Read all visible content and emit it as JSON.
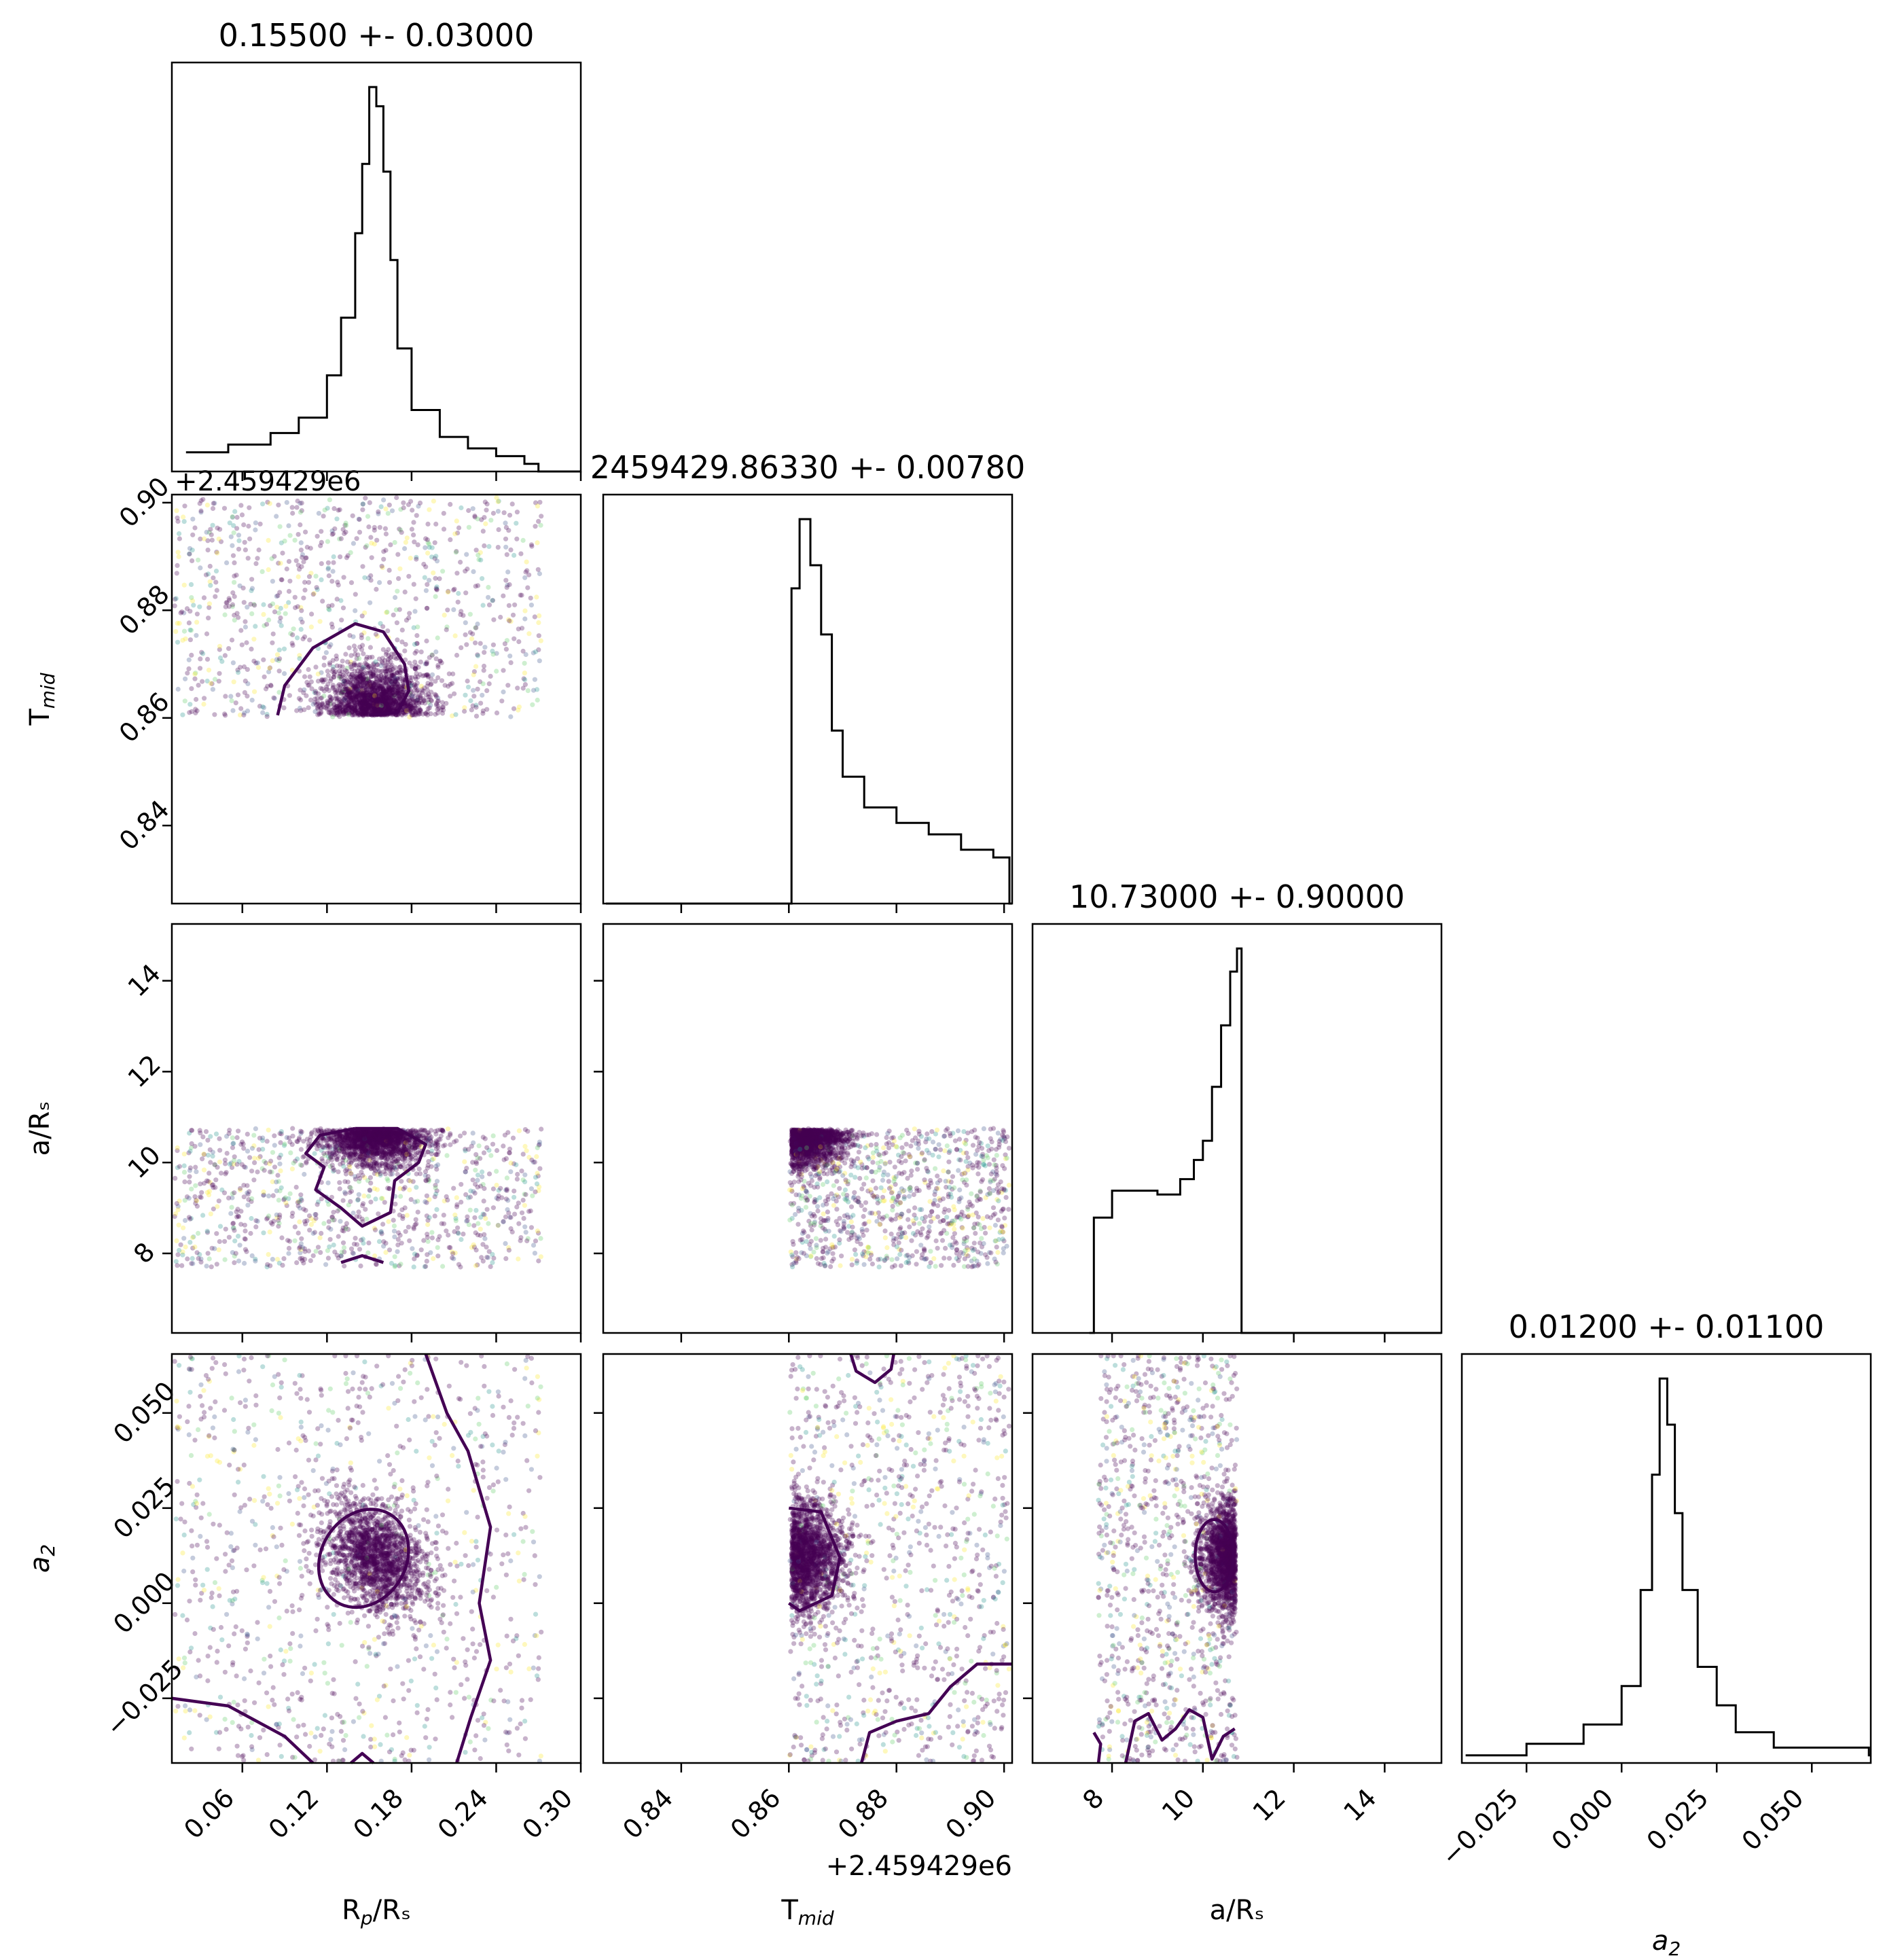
{
  "chart_data": {
    "type": "scatter",
    "kind": "corner-plot",
    "parameters": [
      {
        "key": "rp",
        "label": "R_p/R_s",
        "title": "0.15500 +- 0.03000",
        "range": [
          0.01,
          0.3
        ],
        "ticks": [
          0.06,
          0.12,
          0.18,
          0.24,
          0.3
        ],
        "tick_labels": [
          "0.06",
          "0.12",
          "0.18",
          "0.24",
          "0.30"
        ],
        "center": 0.155,
        "sigma": 0.03
      },
      {
        "key": "tmid",
        "label": "T_mid",
        "title": "2459429.86330 +- 0.00780",
        "offset_label": "+2.459429e6",
        "range": [
          0.8255,
          0.9015
        ],
        "ticks": [
          0.84,
          0.86,
          0.88,
          0.9
        ],
        "tick_labels": [
          "0.84",
          "0.86",
          "0.88",
          "0.90"
        ],
        "center": 0.8633,
        "sigma": 0.0078
      },
      {
        "key": "ars",
        "label": "a/R_s",
        "title": "10.73000 +- 0.90000",
        "range": [
          6.25,
          15.25
        ],
        "ticks": [
          8,
          10,
          12,
          14
        ],
        "tick_labels": [
          "8",
          "10",
          "12",
          "14"
        ],
        "center": 10.73,
        "sigma": 0.9
      },
      {
        "key": "a2",
        "label": "a_2",
        "title": "0.01200 +- 0.01100",
        "range": [
          -0.042,
          0.0655
        ],
        "ticks": [
          -0.025,
          0.0,
          0.025,
          0.05
        ],
        "tick_labels": [
          "−0.025",
          "0.000",
          "0.025",
          "0.050"
        ],
        "center": 0.012,
        "sigma": 0.011
      }
    ],
    "histograms": {
      "rp": {
        "x": [
          0.02,
          0.05,
          0.08,
          0.1,
          0.12,
          0.13,
          0.14,
          0.145,
          0.15,
          0.155,
          0.16,
          0.165,
          0.17,
          0.18,
          0.2,
          0.22,
          0.24,
          0.26,
          0.27
        ],
        "y": [
          0.05,
          0.07,
          0.1,
          0.14,
          0.25,
          0.4,
          0.62,
          0.8,
          1.0,
          0.95,
          0.78,
          0.55,
          0.32,
          0.16,
          0.09,
          0.06,
          0.04,
          0.02,
          0.0
        ]
      },
      "tmid": {
        "x": [
          0.826,
          0.8595,
          0.8605,
          0.862,
          0.864,
          0.866,
          0.868,
          0.87,
          0.874,
          0.88,
          0.886,
          0.892,
          0.898,
          0.901
        ],
        "y": [
          0.0,
          0.0,
          0.82,
          1.0,
          0.88,
          0.7,
          0.45,
          0.33,
          0.25,
          0.21,
          0.18,
          0.14,
          0.12,
          0.0
        ]
      },
      "ars": {
        "x": [
          7.5,
          7.6,
          8.0,
          8.5,
          9.0,
          9.5,
          9.8,
          10.0,
          10.2,
          10.4,
          10.6,
          10.75,
          10.85,
          11.0,
          15.2
        ],
        "y": [
          0.0,
          0.3,
          0.37,
          0.37,
          0.36,
          0.4,
          0.45,
          0.5,
          0.64,
          0.8,
          0.94,
          1.0,
          0.0,
          0.0,
          0.0
        ]
      },
      "a2": {
        "x": [
          -0.041,
          -0.025,
          -0.01,
          0.0,
          0.005,
          0.008,
          0.01,
          0.012,
          0.014,
          0.016,
          0.02,
          0.025,
          0.03,
          0.04,
          0.065
        ],
        "y": [
          0.02,
          0.05,
          0.1,
          0.2,
          0.45,
          0.75,
          1.0,
          0.88,
          0.65,
          0.45,
          0.25,
          0.15,
          0.08,
          0.04,
          0.02
        ]
      }
    },
    "scatter_pairs": [
      {
        "row": "tmid",
        "col": "rp"
      },
      {
        "row": "ars",
        "col": "rp"
      },
      {
        "row": "ars",
        "col": "tmid"
      },
      {
        "row": "a2",
        "col": "rp"
      },
      {
        "row": "a2",
        "col": "tmid"
      },
      {
        "row": "a2",
        "col": "ars"
      }
    ],
    "colormap": "viridis",
    "contour_color": "#440154",
    "point_alpha": 0.3,
    "grid": false,
    "legend": "none"
  }
}
